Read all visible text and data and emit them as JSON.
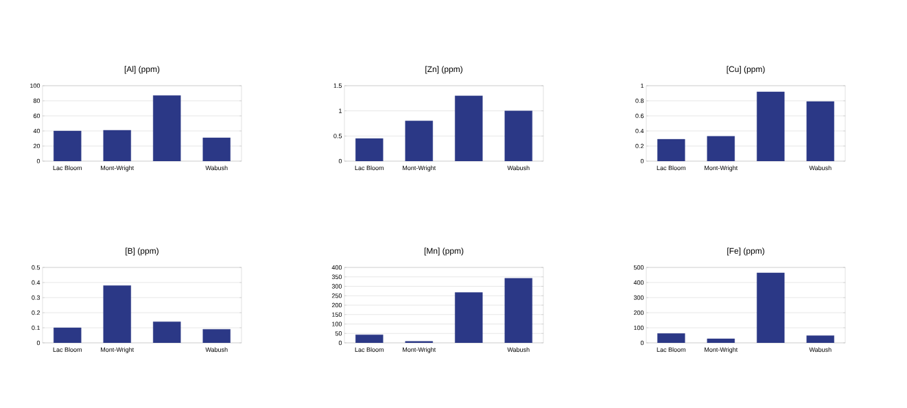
{
  "chart_data": [
    {
      "type": "bar",
      "title": "[Al] (ppm)",
      "categories": [
        "Lac Bloom",
        "Mont-Wright",
        null,
        "Wabush"
      ],
      "values": [
        40,
        41,
        87,
        31
      ],
      "color": "#2b3886",
      "ylim": [
        0,
        100
      ],
      "yticks": [
        0,
        20,
        40,
        60,
        80,
        100
      ],
      "grid": "y"
    },
    {
      "type": "bar",
      "title": "[Zn] (ppm)",
      "categories": [
        "Lac Bloom",
        "Mont-Wright",
        null,
        "Wabush"
      ],
      "values": [
        0.45,
        0.8,
        1.3,
        1.0
      ],
      "color": "#2b3886",
      "ylim": [
        0,
        1.5
      ],
      "yticks": [
        0,
        0.5,
        1,
        1.5
      ],
      "grid": "y"
    },
    {
      "type": "bar",
      "title": "[Cu] (ppm)",
      "categories": [
        "Lac Bloom",
        "Mont-Wright",
        null,
        "Wabush"
      ],
      "values": [
        0.29,
        0.33,
        0.92,
        0.79
      ],
      "color": "#2b3886",
      "ylim": [
        0,
        1
      ],
      "yticks": [
        0,
        0.2,
        0.4,
        0.6,
        0.8,
        1
      ],
      "grid": "y"
    },
    {
      "type": "bar",
      "title": "[B] (ppm)",
      "categories": [
        "Lac Bloom",
        "Mont-Wright",
        null,
        "Wabush"
      ],
      "values": [
        0.1,
        0.38,
        0.14,
        0.09
      ],
      "color": "#2b3886",
      "ylim": [
        0,
        0.5
      ],
      "yticks": [
        0,
        0.1,
        0.2,
        0.3,
        0.4,
        0.5
      ],
      "grid": "y"
    },
    {
      "type": "bar",
      "title": "[Mn] (ppm)",
      "categories": [
        "Lac Bloom",
        "Mont-Wright",
        null,
        "Wabush"
      ],
      "values": [
        43,
        8,
        267,
        343
      ],
      "color": "#2b3886",
      "ylim": [
        0,
        400
      ],
      "yticks": [
        0,
        50,
        100,
        150,
        200,
        250,
        300,
        350,
        400
      ],
      "grid": "y"
    },
    {
      "type": "bar",
      "title": "[Fe] (ppm)",
      "categories": [
        "Lac Bloom",
        "Mont-Wright",
        null,
        "Wabush"
      ],
      "values": [
        62,
        27,
        465,
        48
      ],
      "color": "#2b3886",
      "ylim": [
        0,
        500
      ],
      "yticks": [
        0,
        100,
        200,
        300,
        400,
        500
      ],
      "grid": "y"
    }
  ]
}
